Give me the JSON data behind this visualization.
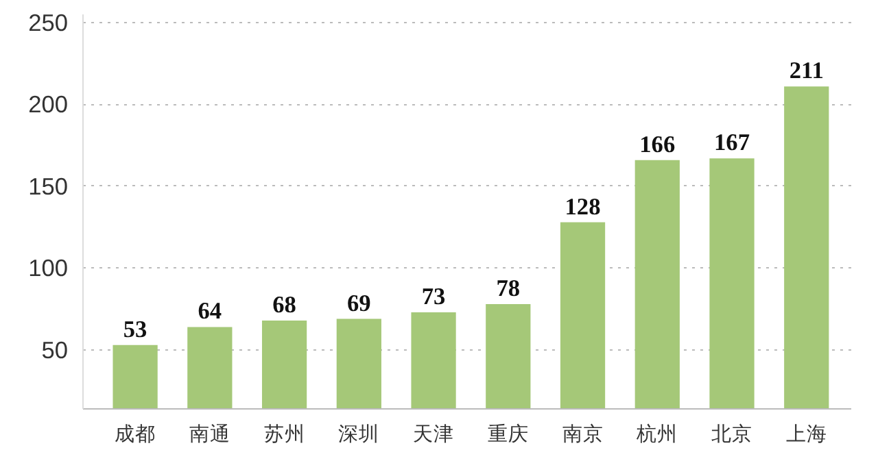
{
  "chart_data": {
    "type": "bar",
    "categories": [
      "成都",
      "南通",
      "苏州",
      "深圳",
      "天津",
      "重庆",
      "南京",
      "杭州",
      "北京",
      "上海"
    ],
    "values": [
      53,
      64,
      68,
      69,
      73,
      78,
      128,
      166,
      167,
      211
    ],
    "color": "#a5c878",
    "ylim": [
      14,
      255
    ],
    "yticks": [
      50,
      100,
      150,
      200,
      250
    ],
    "grid": "y",
    "data_labels": true
  }
}
